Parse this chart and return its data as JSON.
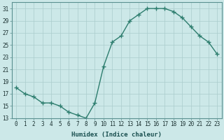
{
  "x": [
    0,
    1,
    2,
    3,
    4,
    5,
    6,
    7,
    8,
    9,
    10,
    11,
    12,
    13,
    14,
    15,
    16,
    17,
    18,
    19,
    20,
    21,
    22,
    23
  ],
  "y": [
    18,
    17,
    16.5,
    15.5,
    15.5,
    15,
    14,
    13.5,
    13,
    15.5,
    21.5,
    25.5,
    26.5,
    29,
    30,
    31,
    31,
    31,
    30.5,
    29.5,
    28,
    26.5,
    25.5,
    23.5
  ],
  "line_color": "#2d7d6e",
  "marker": "+",
  "marker_size": 4,
  "marker_lw": 1.0,
  "bg_color": "#cce8e8",
  "grid_color": "#aacccc",
  "xlabel": "Humidex (Indice chaleur)",
  "xlim": [
    -0.5,
    23.5
  ],
  "ylim": [
    13,
    32
  ],
  "yticks": [
    13,
    15,
    17,
    19,
    21,
    23,
    25,
    27,
    29,
    31
  ],
  "xticks": [
    0,
    1,
    2,
    3,
    4,
    5,
    6,
    7,
    8,
    9,
    10,
    11,
    12,
    13,
    14,
    15,
    16,
    17,
    18,
    19,
    20,
    21,
    22,
    23
  ],
  "tick_fontsize": 5.5,
  "xlabel_fontsize": 6.5,
  "line_width": 1.0
}
